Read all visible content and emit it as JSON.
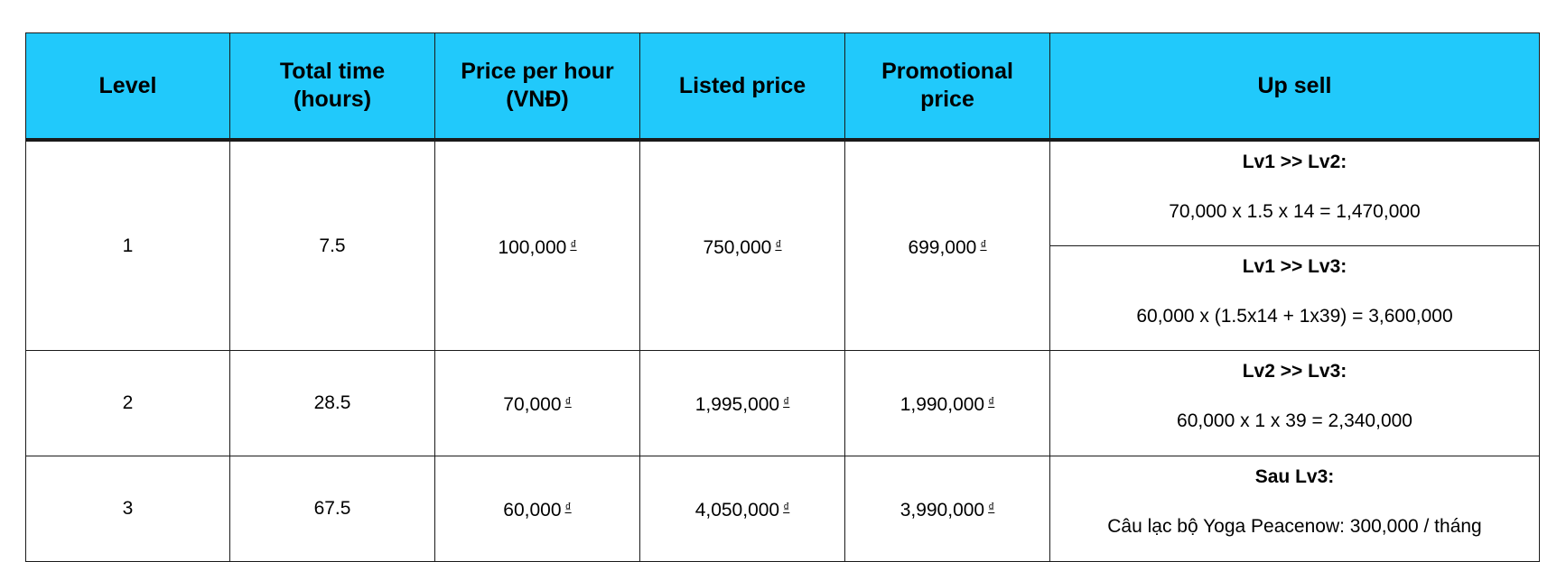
{
  "table": {
    "headers": {
      "level": "Level",
      "total_time": [
        "Total time",
        "(hours)"
      ],
      "price_per_hour": [
        "Price per hour",
        "(VNĐ)"
      ],
      "listed_price": "Listed price",
      "promotional_price": [
        "Promotional",
        "price"
      ],
      "up_sell": "Up sell"
    },
    "currency_symbol": "₫",
    "header_color": "#21c9fb",
    "rows": [
      {
        "level": "1",
        "total_time": "7.5",
        "price_per_hour": "100,000",
        "listed_price": "750,000",
        "promotional_price": "699,000",
        "upsells": [
          {
            "title": "Lv1 >> Lv2:",
            "formula": "70,000 x 1.5 x 14 = 1,470,000"
          },
          {
            "title": "Lv1 >> Lv3:",
            "formula": "60,000 x (1.5x14 + 1x39) = 3,600,000"
          }
        ]
      },
      {
        "level": "2",
        "total_time": "28.5",
        "price_per_hour": "70,000",
        "listed_price": "1,995,000",
        "promotional_price": "1,990,000",
        "upsells": [
          {
            "title": "Lv2 >> Lv3:",
            "formula": "60,000 x 1 x 39 = 2,340,000"
          }
        ]
      },
      {
        "level": "3",
        "total_time": "67.5",
        "price_per_hour": "60,000",
        "listed_price": "4,050,000",
        "promotional_price": "3,990,000",
        "upsells": [
          {
            "title": "Sau Lv3:",
            "formula": "Câu lạc bộ Yoga Peacenow: 300,000 / tháng"
          }
        ]
      }
    ]
  }
}
